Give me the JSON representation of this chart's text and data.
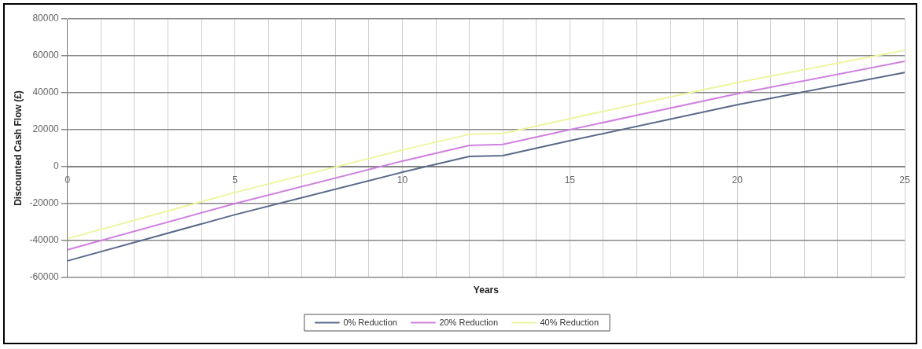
{
  "chart_data": {
    "type": "line",
    "xlabel": "Years",
    "ylabel": "Discounted Cash Flow (£)",
    "x": [
      0,
      5,
      10,
      12,
      13,
      15,
      20,
      25
    ],
    "series": [
      {
        "name": "0% Reduction",
        "color": "#5a6a8a",
        "values": [
          -51000,
          -26000,
          -3000,
          5500,
          6000,
          14000,
          33500,
          51000
        ]
      },
      {
        "name": "20% Reduction",
        "color": "#d080e0",
        "values": [
          -45000,
          -20000,
          3000,
          11500,
          12000,
          20000,
          39500,
          57000
        ]
      },
      {
        "name": "40% Reduction",
        "color": "#eef5a0",
        "values": [
          -39000,
          -14000,
          9000,
          17500,
          18000,
          26000,
          45500,
          63000
        ]
      }
    ],
    "xlim": [
      0,
      25
    ],
    "xticks": [
      0,
      {
        "value": 1,
        "label": null
      },
      {
        "value": 2,
        "label": null
      },
      {
        "value": 3,
        "label": null
      },
      {
        "value": 4,
        "label": null
      },
      5,
      {
        "value": 6,
        "label": null
      },
      {
        "value": 7,
        "label": null
      },
      {
        "value": 8,
        "label": null
      },
      {
        "value": 9,
        "label": null
      },
      10,
      {
        "value": 11,
        "label": null
      },
      {
        "value": 12,
        "label": null
      },
      {
        "value": 13,
        "label": null
      },
      {
        "value": 14,
        "label": null
      },
      15,
      {
        "value": 16,
        "label": null
      },
      {
        "value": 17,
        "label": null
      },
      {
        "value": 18,
        "label": null
      },
      {
        "value": 19,
        "label": null
      },
      20,
      {
        "value": 21,
        "label": null
      },
      {
        "value": 22,
        "label": null
      },
      {
        "value": 23,
        "label": null
      },
      {
        "value": 24,
        "label": null
      },
      25
    ],
    "ylim": [
      -60000,
      80000
    ],
    "yticks": [
      -60000,
      -40000,
      -20000,
      0,
      20000,
      40000,
      60000,
      80000
    ],
    "grid": true,
    "legend": "bottom",
    "marker": "none",
    "line_style": "solid"
  }
}
